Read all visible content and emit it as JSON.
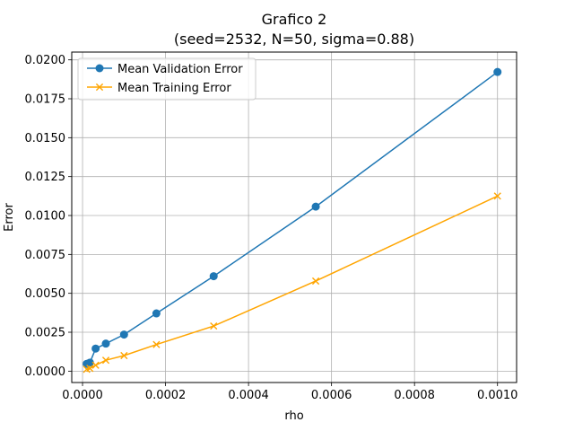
{
  "chart_data": {
    "type": "line",
    "title_line1": "Grafico 2",
    "title_line2": "(seed=2532, N=50, sigma=0.88)",
    "xlabel": "rho",
    "ylabel": "Error",
    "xlim": [
      -2.6e-05,
      0.001046
    ],
    "ylim": [
      -0.00073,
      0.0205
    ],
    "xticks": [
      0.0,
      0.0002,
      0.0004,
      0.0006,
      0.0008,
      0.001
    ],
    "xtick_labels": [
      "0.0000",
      "0.0002",
      "0.0004",
      "0.0006",
      "0.0008",
      "0.0010"
    ],
    "yticks": [
      0.0,
      0.0025,
      0.005,
      0.0075,
      0.01,
      0.0125,
      0.015,
      0.0175,
      0.02
    ],
    "ytick_labels": [
      "0.0000",
      "0.0025",
      "0.0050",
      "0.0075",
      "0.0100",
      "0.0125",
      "0.0150",
      "0.0175",
      "0.0200"
    ],
    "grid": true,
    "legend_position": "upper-left",
    "x": [
      1e-05,
      1.78e-05,
      3.16e-05,
      5.62e-05,
      0.0001,
      0.000178,
      0.000316,
      0.000562,
      0.001
    ],
    "series": [
      {
        "name": "Mean Validation Error",
        "color": "#1f77b4",
        "marker": "circle",
        "values": [
          0.00047,
          0.00055,
          0.00145,
          0.00177,
          0.00235,
          0.00371,
          0.0061,
          0.01057,
          0.01922
        ]
      },
      {
        "name": "Mean Training Error",
        "color": "#ffa500",
        "marker": "x",
        "values": [
          0.00012,
          0.00018,
          0.00038,
          0.0007,
          0.001,
          0.00171,
          0.0029,
          0.00579,
          0.01125
        ]
      }
    ]
  }
}
